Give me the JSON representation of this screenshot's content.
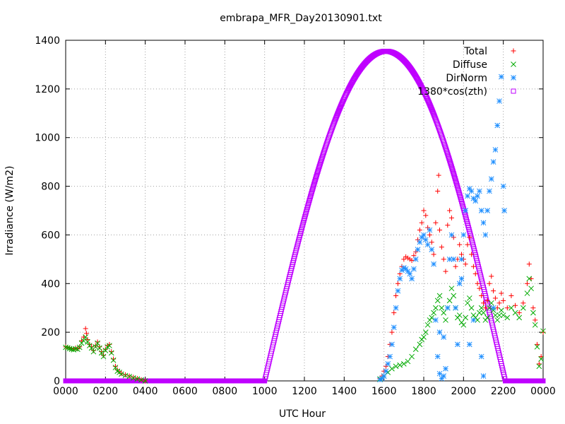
{
  "chart_data": {
    "type": "scatter",
    "title": "embrapa_MFR_Day20130901.txt",
    "xlabel": "UTC Hour",
    "ylabel": "Irradiance (W/m2)",
    "xlim": [
      0,
      24
    ],
    "ylim": [
      0,
      1400
    ],
    "grid": true,
    "legend_position": "top-right",
    "x_ticks": [
      {
        "v": 0,
        "label": "0000"
      },
      {
        "v": 2,
        "label": "0200"
      },
      {
        "v": 4,
        "label": "0400"
      },
      {
        "v": 6,
        "label": "0600"
      },
      {
        "v": 8,
        "label": "0800"
      },
      {
        "v": 10,
        "label": "1000"
      },
      {
        "v": 12,
        "label": "1200"
      },
      {
        "v": 14,
        "label": "1400"
      },
      {
        "v": 16,
        "label": "1600"
      },
      {
        "v": 18,
        "label": "1800"
      },
      {
        "v": 20,
        "label": "2000"
      },
      {
        "v": 22,
        "label": "2200"
      },
      {
        "v": 24,
        "label": "0000"
      }
    ],
    "y_ticks": [
      0,
      200,
      400,
      600,
      800,
      1000,
      1200,
      1400
    ],
    "series": [
      {
        "name": "Total",
        "color": "#ff0000",
        "marker": "plus",
        "points": [
          [
            0.0,
            140
          ],
          [
            0.1,
            138
          ],
          [
            0.2,
            135
          ],
          [
            0.3,
            132
          ],
          [
            0.4,
            130
          ],
          [
            0.5,
            135
          ],
          [
            0.6,
            132
          ],
          [
            0.7,
            140
          ],
          [
            0.8,
            165
          ],
          [
            0.9,
            180
          ],
          [
            1.0,
            215
          ],
          [
            1.05,
            195
          ],
          [
            1.1,
            170
          ],
          [
            1.2,
            150
          ],
          [
            1.3,
            140
          ],
          [
            1.4,
            125
          ],
          [
            1.5,
            145
          ],
          [
            1.6,
            160
          ],
          [
            1.7,
            140
          ],
          [
            1.8,
            120
          ],
          [
            1.9,
            105
          ],
          [
            2.0,
            130
          ],
          [
            2.1,
            145
          ],
          [
            2.2,
            150
          ],
          [
            2.3,
            120
          ],
          [
            2.4,
            90
          ],
          [
            2.5,
            60
          ],
          [
            2.6,
            45
          ],
          [
            2.7,
            38
          ],
          [
            2.8,
            30
          ],
          [
            3.0,
            25
          ],
          [
            3.2,
            20
          ],
          [
            3.4,
            15
          ],
          [
            3.6,
            10
          ],
          [
            3.8,
            5
          ],
          [
            4.0,
            0
          ],
          [
            15.8,
            10
          ],
          [
            15.9,
            20
          ],
          [
            16.0,
            40
          ],
          [
            16.1,
            60
          ],
          [
            16.2,
            100
          ],
          [
            16.3,
            150
          ],
          [
            16.4,
            200
          ],
          [
            16.5,
            280
          ],
          [
            16.6,
            350
          ],
          [
            16.7,
            400
          ],
          [
            16.8,
            440
          ],
          [
            16.9,
            470
          ],
          [
            17.0,
            500
          ],
          [
            17.1,
            510
          ],
          [
            17.2,
            505
          ],
          [
            17.3,
            500
          ],
          [
            17.4,
            495
          ],
          [
            17.5,
            515
          ],
          [
            17.6,
            530
          ],
          [
            17.7,
            580
          ],
          [
            17.8,
            620
          ],
          [
            17.9,
            650
          ],
          [
            18.0,
            700
          ],
          [
            18.1,
            680
          ],
          [
            18.2,
            630
          ],
          [
            18.3,
            600
          ],
          [
            18.4,
            570
          ],
          [
            18.5,
            520
          ],
          [
            18.6,
            650
          ],
          [
            18.7,
            780
          ],
          [
            18.75,
            845
          ],
          [
            18.8,
            620
          ],
          [
            18.9,
            550
          ],
          [
            19.0,
            500
          ],
          [
            19.1,
            450
          ],
          [
            19.2,
            640
          ],
          [
            19.3,
            700
          ],
          [
            19.4,
            670
          ],
          [
            19.5,
            590
          ],
          [
            19.6,
            470
          ],
          [
            19.7,
            500
          ],
          [
            19.8,
            560
          ],
          [
            19.9,
            520
          ],
          [
            20.0,
            500
          ],
          [
            20.1,
            480
          ],
          [
            20.2,
            560
          ],
          [
            20.3,
            590
          ],
          [
            20.4,
            520
          ],
          [
            20.5,
            470
          ],
          [
            20.6,
            440
          ],
          [
            20.7,
            400
          ],
          [
            20.8,
            380
          ],
          [
            20.9,
            350
          ],
          [
            21.0,
            320
          ],
          [
            21.1,
            300
          ],
          [
            21.2,
            330
          ],
          [
            21.3,
            400
          ],
          [
            21.4,
            430
          ],
          [
            21.5,
            370
          ],
          [
            21.6,
            340
          ],
          [
            21.7,
            300
          ],
          [
            21.8,
            320
          ],
          [
            21.9,
            360
          ],
          [
            22.0,
            330
          ],
          [
            22.2,
            300
          ],
          [
            22.4,
            350
          ],
          [
            22.6,
            310
          ],
          [
            22.8,
            280
          ],
          [
            23.0,
            320
          ],
          [
            23.2,
            400
          ],
          [
            23.3,
            480
          ],
          [
            23.4,
            420
          ],
          [
            23.5,
            300
          ],
          [
            23.6,
            250
          ],
          [
            23.7,
            150
          ],
          [
            23.8,
            70
          ],
          [
            23.9,
            100
          ],
          [
            24.0,
            200
          ]
        ]
      },
      {
        "name": "Diffuse",
        "color": "#00aa00",
        "marker": "cross",
        "points": [
          [
            0.0,
            138
          ],
          [
            0.1,
            136
          ],
          [
            0.2,
            133
          ],
          [
            0.3,
            130
          ],
          [
            0.4,
            128
          ],
          [
            0.5,
            132
          ],
          [
            0.6,
            130
          ],
          [
            0.7,
            138
          ],
          [
            0.8,
            155
          ],
          [
            0.9,
            165
          ],
          [
            1.0,
            180
          ],
          [
            1.1,
            160
          ],
          [
            1.2,
            145
          ],
          [
            1.3,
            135
          ],
          [
            1.4,
            120
          ],
          [
            1.5,
            140
          ],
          [
            1.6,
            155
          ],
          [
            1.7,
            135
          ],
          [
            1.8,
            115
          ],
          [
            1.9,
            100
          ],
          [
            2.0,
            125
          ],
          [
            2.1,
            140
          ],
          [
            2.2,
            145
          ],
          [
            2.3,
            115
          ],
          [
            2.4,
            85
          ],
          [
            2.5,
            55
          ],
          [
            2.6,
            40
          ],
          [
            2.7,
            35
          ],
          [
            2.8,
            28
          ],
          [
            3.0,
            22
          ],
          [
            3.2,
            18
          ],
          [
            3.4,
            12
          ],
          [
            3.6,
            8
          ],
          [
            3.8,
            4
          ],
          [
            4.0,
            0
          ],
          [
            15.8,
            8
          ],
          [
            16.0,
            20
          ],
          [
            16.2,
            35
          ],
          [
            16.4,
            50
          ],
          [
            16.6,
            60
          ],
          [
            16.8,
            65
          ],
          [
            17.0,
            70
          ],
          [
            17.2,
            80
          ],
          [
            17.4,
            100
          ],
          [
            17.6,
            130
          ],
          [
            17.8,
            150
          ],
          [
            17.9,
            170
          ],
          [
            18.0,
            180
          ],
          [
            18.1,
            200
          ],
          [
            18.2,
            230
          ],
          [
            18.3,
            250
          ],
          [
            18.4,
            260
          ],
          [
            18.5,
            280
          ],
          [
            18.6,
            300
          ],
          [
            18.7,
            330
          ],
          [
            18.8,
            350
          ],
          [
            18.9,
            300
          ],
          [
            19.0,
            280
          ],
          [
            19.1,
            250
          ],
          [
            19.2,
            300
          ],
          [
            19.3,
            330
          ],
          [
            19.4,
            380
          ],
          [
            19.5,
            350
          ],
          [
            19.6,
            300
          ],
          [
            19.7,
            260
          ],
          [
            19.8,
            270
          ],
          [
            19.9,
            240
          ],
          [
            20.0,
            230
          ],
          [
            20.1,
            260
          ],
          [
            20.2,
            320
          ],
          [
            20.3,
            340
          ],
          [
            20.4,
            300
          ],
          [
            20.5,
            270
          ],
          [
            20.6,
            260
          ],
          [
            20.7,
            250
          ],
          [
            20.8,
            280
          ],
          [
            20.9,
            300
          ],
          [
            21.0,
            280
          ],
          [
            21.1,
            250
          ],
          [
            21.2,
            260
          ],
          [
            21.3,
            300
          ],
          [
            21.4,
            320
          ],
          [
            21.5,
            290
          ],
          [
            21.6,
            270
          ],
          [
            21.7,
            250
          ],
          [
            21.8,
            270
          ],
          [
            21.9,
            290
          ],
          [
            22.0,
            270
          ],
          [
            22.2,
            260
          ],
          [
            22.4,
            300
          ],
          [
            22.6,
            280
          ],
          [
            22.8,
            260
          ],
          [
            23.0,
            300
          ],
          [
            23.2,
            360
          ],
          [
            23.3,
            420
          ],
          [
            23.4,
            380
          ],
          [
            23.5,
            280
          ],
          [
            23.6,
            230
          ],
          [
            23.7,
            140
          ],
          [
            23.8,
            60
          ],
          [
            23.9,
            90
          ],
          [
            24.0,
            205
          ]
        ]
      },
      {
        "name": "DirNorm",
        "color": "#1f8fff",
        "marker": "star",
        "points": [
          [
            15.8,
            5
          ],
          [
            15.9,
            10
          ],
          [
            16.0,
            20
          ],
          [
            16.1,
            40
          ],
          [
            16.2,
            70
          ],
          [
            16.3,
            100
          ],
          [
            16.4,
            150
          ],
          [
            16.5,
            220
          ],
          [
            16.6,
            300
          ],
          [
            16.7,
            370
          ],
          [
            16.8,
            420
          ],
          [
            16.9,
            455
          ],
          [
            17.0,
            465
          ],
          [
            17.1,
            460
          ],
          [
            17.2,
            450
          ],
          [
            17.3,
            440
          ],
          [
            17.4,
            420
          ],
          [
            17.5,
            460
          ],
          [
            17.6,
            500
          ],
          [
            17.7,
            540
          ],
          [
            17.8,
            570
          ],
          [
            17.9,
            590
          ],
          [
            18.0,
            600
          ],
          [
            18.1,
            580
          ],
          [
            18.2,
            560
          ],
          [
            18.3,
            620
          ],
          [
            18.4,
            540
          ],
          [
            18.5,
            480
          ],
          [
            18.6,
            250
          ],
          [
            18.7,
            100
          ],
          [
            18.8,
            30
          ],
          [
            18.9,
            10
          ],
          [
            19.0,
            20
          ],
          [
            19.1,
            50
          ],
          [
            19.2,
            300
          ],
          [
            19.3,
            500
          ],
          [
            19.4,
            600
          ],
          [
            19.5,
            500
          ],
          [
            19.6,
            300
          ],
          [
            19.7,
            150
          ],
          [
            19.8,
            400
          ],
          [
            19.9,
            500
          ],
          [
            20.0,
            600
          ],
          [
            20.1,
            700
          ],
          [
            20.2,
            760
          ],
          [
            20.3,
            790
          ],
          [
            20.4,
            780
          ],
          [
            20.5,
            750
          ],
          [
            20.6,
            740
          ],
          [
            20.7,
            760
          ],
          [
            20.8,
            780
          ],
          [
            20.9,
            700
          ],
          [
            21.0,
            650
          ],
          [
            21.1,
            600
          ],
          [
            21.2,
            700
          ],
          [
            21.3,
            780
          ],
          [
            21.4,
            830
          ],
          [
            21.5,
            900
          ],
          [
            21.6,
            950
          ],
          [
            21.7,
            1050
          ],
          [
            21.8,
            1150
          ],
          [
            21.9,
            1250
          ],
          [
            22.0,
            800
          ],
          [
            22.05,
            700
          ],
          [
            21.5,
            300
          ],
          [
            21.0,
            20
          ],
          [
            20.9,
            100
          ],
          [
            20.5,
            250
          ],
          [
            20.3,
            150
          ],
          [
            19.9,
            420
          ],
          [
            19.0,
            180
          ],
          [
            18.8,
            200
          ]
        ]
      },
      {
        "name": "1380*cos(zth)",
        "color": "#bf00ff",
        "marker": "square",
        "points": []
      }
    ],
    "curve": {
      "name": "1380*cos(zth)",
      "peak_x": 16.1,
      "peak_y": 1355,
      "start_x": 10.0,
      "end_x": 22.1
    }
  }
}
